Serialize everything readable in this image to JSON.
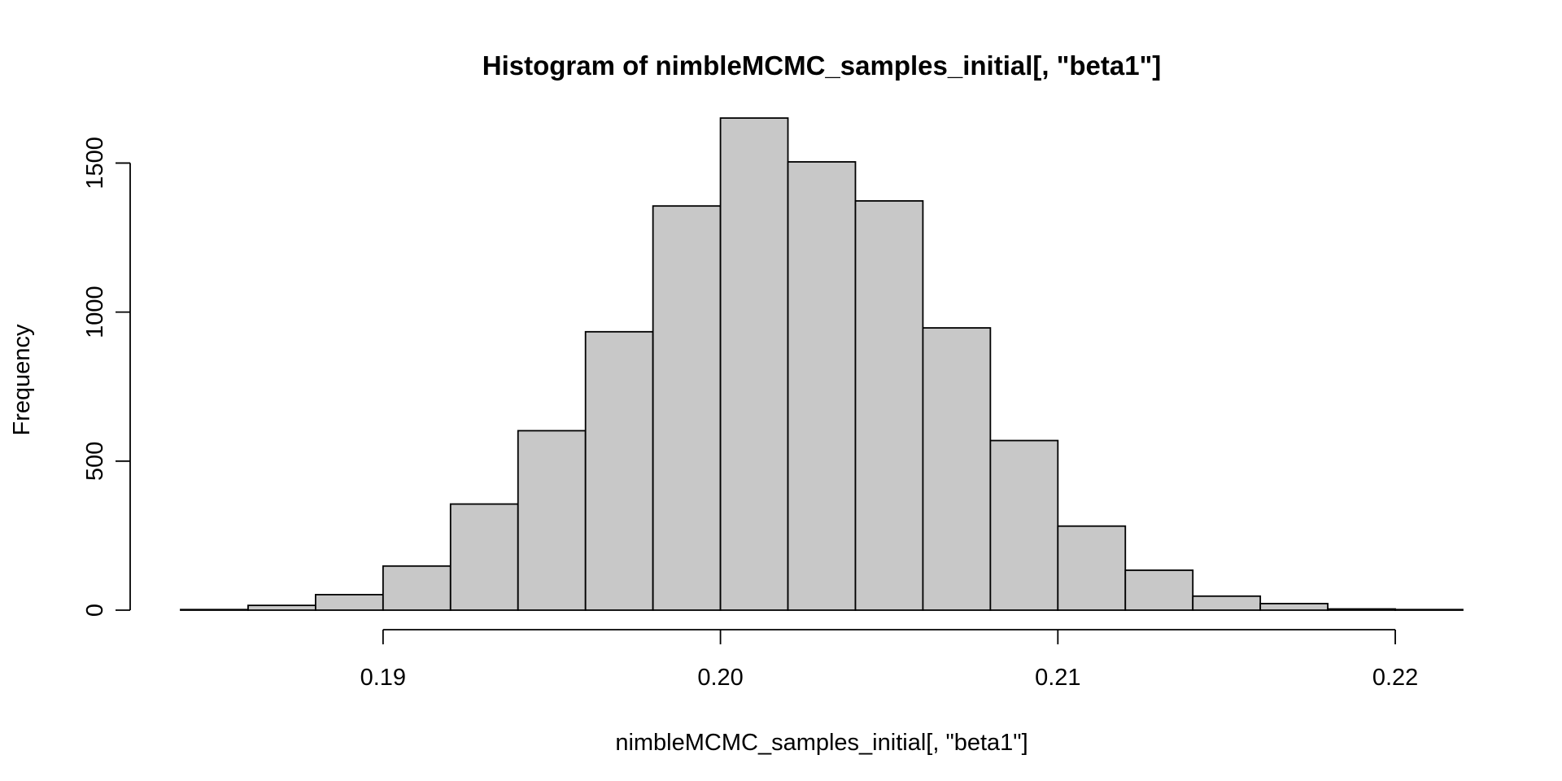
{
  "chart_data": {
    "type": "bar",
    "title": "Histogram of nimbleMCMC_samples_initial[, \"beta1\"]",
    "xlabel": "nimbleMCMC_samples_initial[, \"beta1\"]",
    "ylabel": "Frequency",
    "bin_edges": [
      0.184,
      0.186,
      0.188,
      0.19,
      0.192,
      0.194,
      0.196,
      0.198,
      0.2,
      0.202,
      0.204,
      0.206,
      0.208,
      0.21,
      0.212,
      0.214,
      0.216,
      0.218,
      0.22,
      0.222
    ],
    "values": [
      2,
      16,
      52,
      148,
      356,
      602,
      934,
      1356,
      1651,
      1504,
      1373,
      947,
      569,
      282,
      134,
      47,
      22,
      4,
      2
    ],
    "xlim": [
      0.184,
      0.222
    ],
    "ylim": [
      0,
      1650
    ],
    "x_ticks": [
      0.19,
      0.2,
      0.21,
      0.22
    ],
    "x_tick_labels": [
      "0.19",
      "0.20",
      "0.21",
      "0.22"
    ],
    "y_ticks": [
      0,
      500,
      1000,
      1500
    ],
    "y_tick_labels": [
      "0",
      "500",
      "1000",
      "1500"
    ],
    "bar_fill": "#c8c8c8",
    "bar_stroke": "#000000",
    "grid": false,
    "legend": "none"
  }
}
